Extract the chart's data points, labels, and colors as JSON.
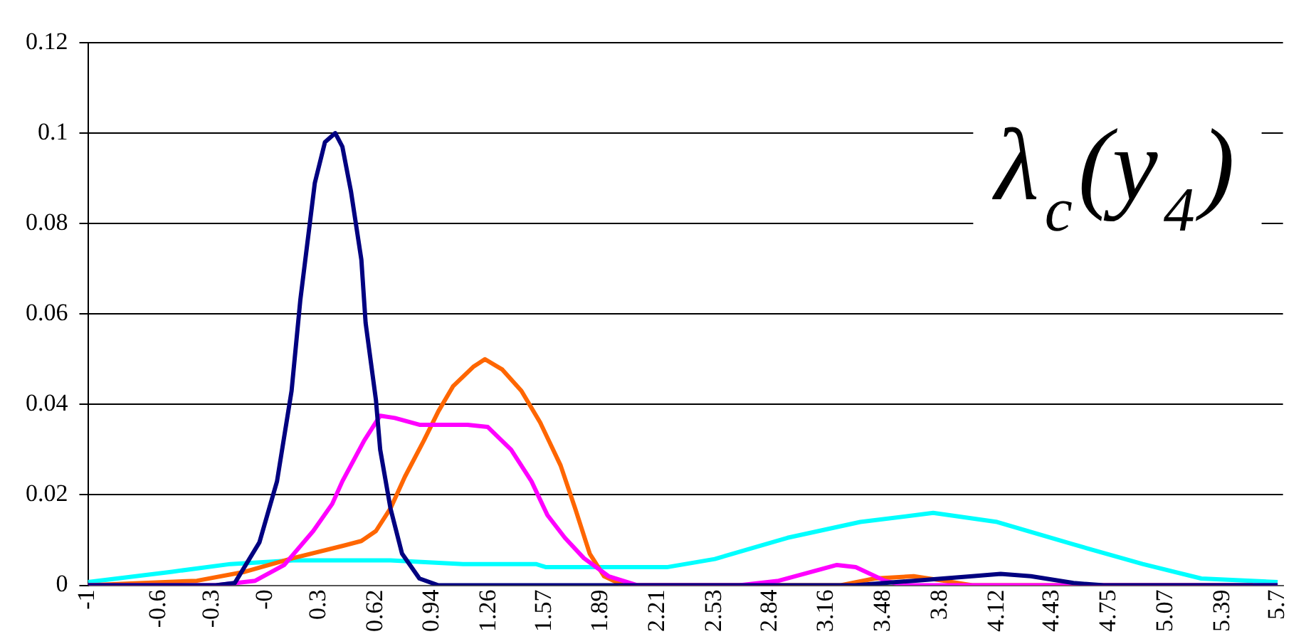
{
  "chart_data": {
    "type": "line",
    "xlim": [
      -1,
      5.73
    ],
    "xticks": [
      -1,
      -0.6,
      -0.3,
      {
        "value": 0,
        "label": "-0"
      },
      0.3,
      0.62,
      0.94,
      1.26,
      1.57,
      1.89,
      2.21,
      2.53,
      2.84,
      3.16,
      3.48,
      3.8,
      4.12,
      4.43,
      4.75,
      5.07,
      5.39,
      5.7
    ],
    "ylim": [
      0,
      0.12
    ],
    "yticks": [
      0,
      0.02,
      0.04,
      0.06,
      0.08,
      0.1,
      0.12
    ],
    "grid": "y",
    "legend": false,
    "marker": "none",
    "line_style": "solid",
    "annotations": [
      "λ$_{c}$(y$_{4}$)"
    ],
    "series": [
      {
        "color": "#000080",
        "x": [
          -1,
          -0.28,
          -0.173,
          -0.034,
          0.065,
          0.147,
          0.196,
          0.278,
          0.335,
          0.393,
          0.433,
          0.482,
          0.54,
          0.564,
          0.622,
          0.646,
          0.704,
          0.769,
          0.867,
          0.974,
          3.32,
          3.65,
          3.98,
          4.14,
          4.31,
          4.55,
          4.72,
          5.7
        ],
        "values": [
          0,
          0,
          0.0005,
          0.0095,
          0.023,
          0.043,
          0.063,
          0.089,
          0.098,
          0.1,
          0.097,
          0.087,
          0.072,
          0.058,
          0.041,
          0.03,
          0.017,
          0.007,
          0.0015,
          0,
          0,
          0.001,
          0.002,
          0.0025,
          0.002,
          0.0005,
          0,
          0
        ]
      },
      {
        "color": "#ff00ff",
        "x": [
          -1,
          -0.279,
          -0.058,
          0.106,
          0.269,
          0.376,
          0.433,
          0.556,
          0.646,
          0.728,
          0.867,
          1.138,
          1.252,
          1.383,
          1.498,
          1.588,
          1.686,
          1.793,
          1.932,
          2.096,
          2.669,
          2.89,
          3.218,
          3.324,
          3.488,
          3.595,
          5.7
        ],
        "values": [
          0,
          0,
          0.001,
          0.0045,
          0.012,
          0.018,
          0.023,
          0.032,
          0.0375,
          0.037,
          0.0355,
          0.0355,
          0.035,
          0.03,
          0.023,
          0.0155,
          0.0105,
          0.006,
          0.002,
          0,
          0,
          0.001,
          0.0045,
          0.004,
          0.001,
          0,
          0
        ]
      },
      {
        "color": "#ff6600",
        "x": [
          -1,
          -0.386,
          -0.115,
          0.155,
          0.433,
          0.54,
          0.622,
          0.704,
          0.785,
          0.892,
          0.974,
          1.056,
          1.17,
          1.236,
          1.334,
          1.441,
          1.547,
          1.662,
          1.744,
          1.826,
          1.907,
          2.014,
          3.24,
          3.43,
          3.65,
          3.82,
          3.98,
          5.56
        ],
        "values": [
          0,
          0.001,
          0.003,
          0.006,
          0.0087,
          0.0098,
          0.012,
          0.017,
          0.024,
          0.032,
          0.0385,
          0.044,
          0.0483,
          0.05,
          0.0477,
          0.043,
          0.036,
          0.0265,
          0.017,
          0.007,
          0.002,
          0,
          0,
          0.0015,
          0.002,
          0.001,
          0,
          0
        ]
      },
      {
        "color": "#00ffff",
        "x": [
          -1,
          -0.525,
          -0.197,
          0.155,
          0.704,
          1.113,
          1.523,
          1.58,
          2.014,
          2.26,
          2.53,
          2.94,
          3.35,
          3.76,
          4.12,
          4.58,
          4.94,
          5.27,
          5.7
        ],
        "values": [
          0.0007,
          0.003,
          0.0047,
          0.0055,
          0.0055,
          0.0047,
          0.0047,
          0.004,
          0.004,
          0.004,
          0.0058,
          0.0105,
          0.014,
          0.016,
          0.014,
          0.0087,
          0.0047,
          0.0015,
          0.0007
        ]
      }
    ]
  }
}
